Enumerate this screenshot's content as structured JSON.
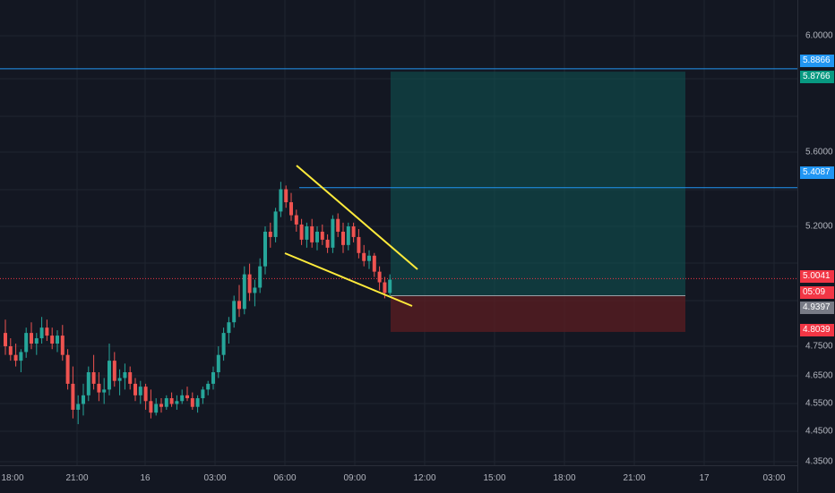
{
  "chart_data": {
    "type": "candlestick",
    "price_ticks": [
      "6.0000",
      "5.6000",
      "5.2000",
      "4.7500",
      "4.6500",
      "4.5500",
      "4.4500",
      "4.3500"
    ],
    "time_ticks": [
      "18:00",
      "21:00",
      "16",
      "03:00",
      "06:00",
      "09:00",
      "12:00",
      "15:00",
      "18:00",
      "21:00",
      "17",
      "03:00"
    ],
    "price_labels": [
      {
        "value": "5.8866",
        "color": "#2196f3"
      },
      {
        "value": "5.8766",
        "color": "#089981"
      },
      {
        "value": "5.4087",
        "color": "#2196f3"
      },
      {
        "value": "5.0041",
        "color": "#f23645"
      },
      {
        "value": "05:09",
        "color": "#f23645"
      },
      {
        "value": "4.9397",
        "color": "#787b86"
      },
      {
        "value": "4.8039",
        "color": "#f23645"
      }
    ],
    "horizontal_lines": [
      {
        "price": 5.8866,
        "color": "#2196f3",
        "style": "solid"
      },
      {
        "price": 5.4087,
        "color": "#2196f3",
        "style": "solid"
      },
      {
        "price": 5.0041,
        "color": "#f23645",
        "style": "dotted"
      }
    ],
    "position": {
      "entry": 4.9397,
      "target": 5.8766,
      "stop": 4.8039,
      "profit_color": "#0d5c58",
      "loss_color": "#5c1e22"
    },
    "pattern": {
      "name": "falling wedge",
      "color": "#ffeb3b"
    },
    "candles": [
      [
        4.8,
        4.85,
        4.72,
        4.75
      ],
      [
        4.75,
        4.78,
        4.7,
        4.72
      ],
      [
        4.72,
        4.76,
        4.68,
        4.7
      ],
      [
        4.7,
        4.74,
        4.66,
        4.73
      ],
      [
        4.73,
        4.82,
        4.71,
        4.8
      ],
      [
        4.8,
        4.84,
        4.74,
        4.76
      ],
      [
        4.76,
        4.8,
        4.72,
        4.78
      ],
      [
        4.78,
        4.86,
        4.76,
        4.82
      ],
      [
        4.82,
        4.85,
        4.77,
        4.79
      ],
      [
        4.79,
        4.82,
        4.74,
        4.76
      ],
      [
        4.76,
        4.81,
        4.73,
        4.79
      ],
      [
        4.79,
        4.83,
        4.7,
        4.72
      ],
      [
        4.72,
        4.74,
        4.6,
        4.62
      ],
      [
        4.62,
        4.68,
        4.5,
        4.53
      ],
      [
        4.53,
        4.58,
        4.48,
        4.55
      ],
      [
        4.55,
        4.62,
        4.51,
        4.58
      ],
      [
        4.58,
        4.68,
        4.56,
        4.66
      ],
      [
        4.66,
        4.72,
        4.6,
        4.62
      ],
      [
        4.62,
        4.66,
        4.56,
        4.59
      ],
      [
        4.59,
        4.64,
        4.55,
        4.6
      ],
      [
        4.6,
        4.76,
        4.58,
        4.7
      ],
      [
        4.7,
        4.73,
        4.61,
        4.63
      ],
      [
        4.63,
        4.67,
        4.58,
        4.64
      ],
      [
        4.64,
        4.69,
        4.6,
        4.66
      ],
      [
        4.66,
        4.68,
        4.6,
        4.62
      ],
      [
        4.62,
        4.64,
        4.56,
        4.58
      ],
      [
        4.58,
        4.63,
        4.55,
        4.61
      ],
      [
        4.61,
        4.62,
        4.53,
        4.56
      ],
      [
        4.56,
        4.6,
        4.5,
        4.52
      ],
      [
        4.52,
        4.57,
        4.51,
        4.55
      ],
      [
        4.55,
        4.57,
        4.52,
        4.54
      ],
      [
        4.54,
        4.58,
        4.53,
        4.57
      ],
      [
        4.57,
        4.59,
        4.54,
        4.55
      ],
      [
        4.55,
        4.58,
        4.53,
        4.56
      ],
      [
        4.56,
        4.6,
        4.55,
        4.58
      ],
      [
        4.58,
        4.61,
        4.56,
        4.57
      ],
      [
        4.57,
        4.59,
        4.53,
        4.54
      ],
      [
        4.54,
        4.58,
        4.52,
        4.57
      ],
      [
        4.57,
        4.61,
        4.55,
        4.6
      ],
      [
        4.6,
        4.63,
        4.58,
        4.62
      ],
      [
        4.62,
        4.68,
        4.6,
        4.66
      ],
      [
        4.66,
        4.75,
        4.64,
        4.72
      ],
      [
        4.72,
        4.82,
        4.7,
        4.8
      ],
      [
        4.8,
        4.86,
        4.76,
        4.84
      ],
      [
        4.84,
        4.94,
        4.82,
        4.92
      ],
      [
        4.92,
        4.98,
        4.86,
        4.89
      ],
      [
        4.89,
        5.05,
        4.87,
        5.02
      ],
      [
        5.02,
        5.06,
        4.92,
        4.95
      ],
      [
        4.95,
        5.0,
        4.9,
        4.97
      ],
      [
        4.97,
        5.08,
        4.95,
        5.05
      ],
      [
        5.05,
        5.2,
        5.02,
        5.18
      ],
      [
        5.18,
        5.22,
        5.12,
        5.16
      ],
      [
        5.16,
        5.3,
        5.14,
        5.28
      ],
      [
        5.28,
        5.44,
        5.25,
        5.4
      ],
      [
        5.4,
        5.42,
        5.3,
        5.33
      ],
      [
        5.33,
        5.38,
        5.23,
        5.26
      ],
      [
        5.26,
        5.29,
        5.18,
        5.21
      ],
      [
        5.21,
        5.24,
        5.13,
        5.15
      ],
      [
        5.15,
        5.22,
        5.12,
        5.2
      ],
      [
        5.2,
        5.24,
        5.12,
        5.14
      ],
      [
        5.14,
        5.2,
        5.11,
        5.18
      ],
      [
        5.18,
        5.21,
        5.13,
        5.15
      ],
      [
        5.15,
        5.17,
        5.1,
        5.12
      ],
      [
        5.12,
        5.26,
        5.1,
        5.24
      ],
      [
        5.24,
        5.27,
        5.16,
        5.18
      ],
      [
        5.18,
        5.22,
        5.1,
        5.13
      ],
      [
        5.13,
        5.22,
        5.11,
        5.2
      ],
      [
        5.2,
        5.22,
        5.14,
        5.16
      ],
      [
        5.16,
        5.19,
        5.08,
        5.1
      ],
      [
        5.1,
        5.13,
        5.05,
        5.07
      ],
      [
        5.07,
        5.11,
        5.04,
        5.09
      ],
      [
        5.09,
        5.1,
        5.01,
        5.03
      ],
      [
        5.03,
        5.05,
        4.96,
        4.99
      ],
      [
        4.99,
        5.01,
        4.93,
        4.95
      ],
      [
        4.95,
        5.02,
        4.94,
        5.0
      ]
    ]
  }
}
